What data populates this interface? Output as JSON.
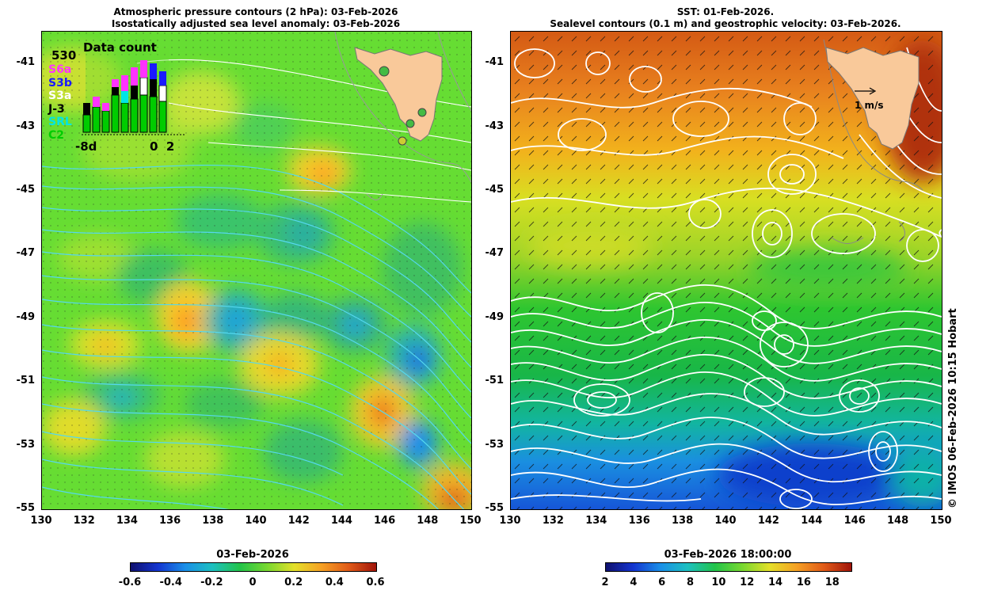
{
  "left_panel": {
    "title_line1": "Atmospheric pressure contours (2 hPa): 03-Feb-2026",
    "title_line2": "Isostatically adjusted sea level anomaly: 03-Feb-2026",
    "inset": {
      "title": "Data count",
      "count": "530",
      "missions": [
        {
          "name": "S6a",
          "color": "#ff33ff"
        },
        {
          "name": "S3b",
          "color": "#1a1aff"
        },
        {
          "name": "S3a",
          "color": "#ffffff"
        },
        {
          "name": "J-3",
          "color": "#000000"
        },
        {
          "name": "SRL",
          "color": "#00e5e5"
        },
        {
          "name": "C2",
          "color": "#00cc00"
        }
      ],
      "x_left": "-8d",
      "x_right": "0  2"
    },
    "colorbar": {
      "title": "03-Feb-2026",
      "labels": [
        "-0.6",
        "-0.4",
        "-0.2",
        "0",
        "0.2",
        "0.4",
        "0.6"
      ]
    }
  },
  "right_panel": {
    "title_line1": "SST: 01-Feb-2026.",
    "title_line2": "Sealevel contours (0.1 m) and geostrophic velocity: 03-Feb-2026.",
    "velocity_label": "1 m/s",
    "colorbar": {
      "title": "03-Feb-2026 18:00:00",
      "labels": [
        "2",
        "4",
        "6",
        "8",
        "10",
        "12",
        "14",
        "16",
        "18"
      ]
    }
  },
  "axes": {
    "y_ticks": [
      "-41",
      "-43",
      "-45",
      "-47",
      "-49",
      "-51",
      "-53",
      "-55"
    ],
    "x_ticks": [
      "130",
      "132",
      "134",
      "136",
      "138",
      "140",
      "142",
      "144",
      "146",
      "148",
      "150"
    ]
  },
  "credit": "© IMOS 06-Feb-2026 10:15 Hobart",
  "colors": {
    "land": "#f9c99a",
    "ssla_background": "#66dd33",
    "pressure_contours": "#55d8ee",
    "sealevel_contours": "#ffffff"
  }
}
